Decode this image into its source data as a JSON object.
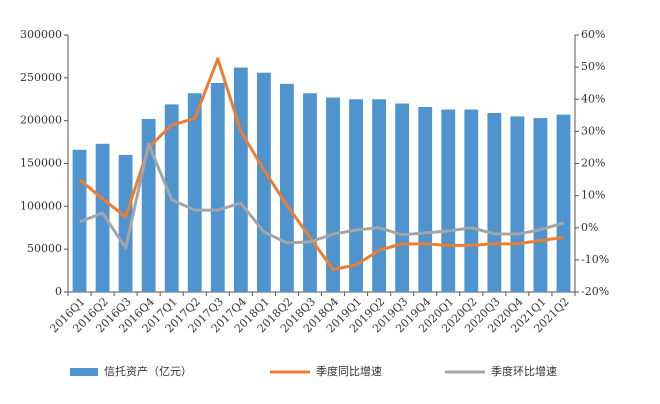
{
  "chart_data": {
    "type": "bar",
    "categories": [
      "2016Q1",
      "2016Q2",
      "2016Q3",
      "2016Q4",
      "2017Q1",
      "2017Q2",
      "2017Q3",
      "2017Q4",
      "2018Q1",
      "2018Q2",
      "2018Q3",
      "2018Q4",
      "2019Q1",
      "2019Q2",
      "2019Q3",
      "2019Q4",
      "2020Q1",
      "2020Q2",
      "2020Q3",
      "2020Q4",
      "2021Q1",
      "2021Q2"
    ],
    "series": [
      {
        "name": "信托资产（亿元）",
        "type": "bar",
        "color": "#4f93cf",
        "values": [
          166000,
          173000,
          160000,
          202000,
          219000,
          232000,
          244000,
          262000,
          256000,
          243000,
          232000,
          227000,
          225000,
          225000,
          220000,
          216000,
          213000,
          213000,
          209000,
          205000,
          203000,
          207000
        ]
      },
      {
        "name": "季度同比增速",
        "type": "line",
        "axis": "y2",
        "color": "#ed7d31",
        "values": [
          15,
          9,
          3.4,
          25,
          32,
          34,
          52.6,
          30,
          18,
          7,
          -3,
          -13,
          -11.6,
          -7,
          -5,
          -5,
          -5.5,
          -5.5,
          -5,
          -5,
          -4,
          -3
        ]
      },
      {
        "name": "季度环比增速",
        "type": "line",
        "axis": "y2",
        "color": "#a5a5a5",
        "values": [
          1.8,
          4.6,
          -6.3,
          26,
          8.7,
          5.5,
          5.5,
          7.7,
          -1.3,
          -4.7,
          -4.4,
          -2,
          -0.7,
          0,
          -2.2,
          -1.6,
          -1,
          0,
          -1.9,
          -2,
          -0.6,
          1.5
        ]
      }
    ],
    "ylim": [
      0,
      300000
    ],
    "yticks": [
      0,
      50000,
      100000,
      150000,
      200000,
      250000,
      300000
    ],
    "y2lim": [
      -20,
      60
    ],
    "y2ticks": [
      {
        "value": -20,
        "label": "-20%"
      },
      {
        "value": -10,
        "label": "-10%"
      },
      {
        "value": 0,
        "label": "0%"
      },
      {
        "value": 10,
        "label": "10%"
      },
      {
        "value": 20,
        "label": "20%"
      },
      {
        "value": 30,
        "label": "30%"
      },
      {
        "value": 40,
        "label": "40%"
      },
      {
        "value": 50,
        "label": "50%"
      },
      {
        "value": 60,
        "label": "60%"
      }
    ],
    "grid": false,
    "legend": "bottom"
  }
}
